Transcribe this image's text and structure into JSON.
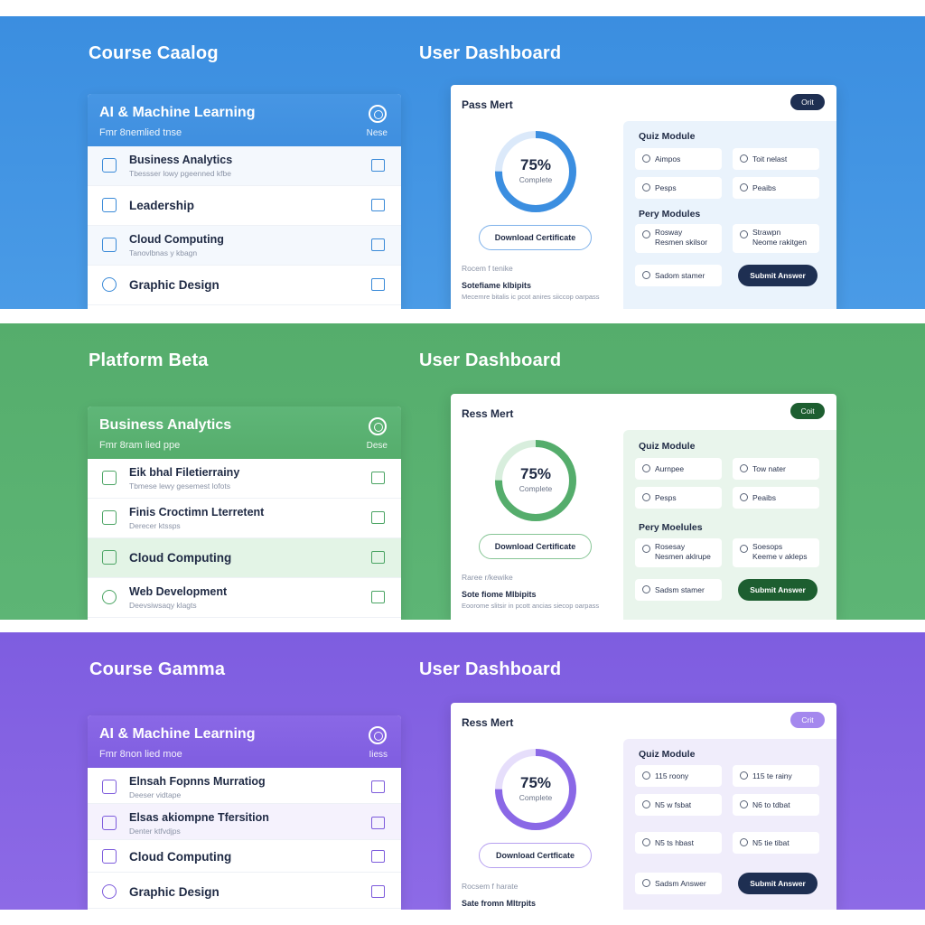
{
  "colors": {
    "blue_band": "#3b8ee0",
    "green_band": "#55ad6c",
    "purple_band": "#7e5de0",
    "navy_button": "#1e2f52",
    "green_button": "#1d5e30",
    "purple_pill": "#a488ee"
  },
  "sections": [
    {
      "catalog_title": "Course Caalog",
      "dashboard_title": "User Dashboard",
      "panel": {
        "title": "AI & Machine Learning",
        "subtitle": "Fmr 8nemlied tnse",
        "icon": "target-icon",
        "icon_label": "Nese"
      },
      "courses": [
        {
          "title": "Business Analytics",
          "subtitle": "Tbessser lowy pgeenned kfbe"
        },
        {
          "title": "Leadership",
          "subtitle": ""
        },
        {
          "title": "Cloud Computing",
          "subtitle": "Tanovlbnas y kbagn"
        },
        {
          "title": "Graphic Design",
          "subtitle": ""
        }
      ],
      "dashboard": {
        "title": "Pass Mert",
        "top_button": "Orit",
        "progress": 75,
        "progress_text": "75%",
        "progress_label": "Complete",
        "cert_button": "Download Certificate",
        "meta1": "Rocem f tenike",
        "meta2": "Sotefiame klbipits",
        "meta3": "Mecemre bitalis ic pcot anires siiccop oarpass",
        "quiz_heading": "Quiz Module",
        "modules_heading": "Pery Modules",
        "options": [
          "Aimpos",
          "Toit nelast",
          "Pesps",
          "Peaibs"
        ],
        "modules": [
          [
            "Rosway",
            "Resmen skilsor"
          ],
          [
            "Strawpn",
            "Neome rakitgen"
          ]
        ],
        "last_option": "Sadom stamer",
        "submit": "Submit Answer"
      }
    },
    {
      "catalog_title": "Platform Beta",
      "dashboard_title": "User Dashboard",
      "panel": {
        "title": "Business Analytics",
        "subtitle": "Fmr 8ram lied ppe",
        "icon": "target-icon",
        "icon_label": "Dese"
      },
      "courses": [
        {
          "title": "Eik bhal Filetierrainy",
          "subtitle": "Tbmese lewy gesemest lofots"
        },
        {
          "title": "Finis Croctimn Lterretent",
          "subtitle": "Derecer ktssps"
        },
        {
          "title": "Cloud Computing",
          "subtitle": ""
        },
        {
          "title": "Web Development",
          "subtitle": "Deevsiwsaqy klagts"
        }
      ],
      "dashboard": {
        "title": "Ress Mert",
        "top_button": "Coit",
        "progress": 75,
        "progress_text": "75%",
        "progress_label": "Complete",
        "cert_button": "Download Certificate",
        "meta1": "Raree r/kewike",
        "meta2": "Sote fiome Mlbipits",
        "meta3": "Eoorome slitsir in pcott ancias siecop oarpass",
        "quiz_heading": "Quiz Module",
        "modules_heading": "Pery Moelules",
        "options": [
          "Aurnpee",
          "Tow nater",
          "Pesps",
          "Peaibs"
        ],
        "modules": [
          [
            "Rosesay",
            "Nesmen aklrupe"
          ],
          [
            "Soesops",
            "Keeme v akleps"
          ]
        ],
        "last_option": "Sadsm stamer",
        "submit": "Submit Answer"
      }
    },
    {
      "catalog_title": "Course Gamma",
      "dashboard_title": "User Dashboard",
      "panel": {
        "title": "AI & Machine Learning",
        "subtitle": "Fmr 8non lied moe",
        "icon": "target-icon",
        "icon_label": "Iiess"
      },
      "courses": [
        {
          "title": "Elnsah Fopnns Murratiog",
          "subtitle": "Deeser vidtape"
        },
        {
          "title": "Elsas akiompne Tfersition",
          "subtitle": "Denter ktfvdjps"
        },
        {
          "title": "Cloud Computing",
          "subtitle": ""
        },
        {
          "title": "Graphic Design",
          "subtitle": ""
        }
      ],
      "dashboard": {
        "title": "Ress Mert",
        "top_button": "Crit",
        "progress": 75,
        "progress_text": "75%",
        "progress_label": "Complete",
        "cert_button": "Download Certficate",
        "meta1": "Rocsem f harate",
        "meta2": "Sate fromn Mltrpits",
        "meta3": "",
        "quiz_heading": "Quiz Module",
        "modules_heading": "",
        "options": [
          "115 roony",
          "115 te rainy",
          "N5 w fsbat",
          "N6 to tdbat",
          "N5 ts hbast",
          "N5 tie tibat"
        ],
        "modules": [],
        "last_option": "Sadsm Answer",
        "submit": "Submit Answer"
      }
    }
  ]
}
